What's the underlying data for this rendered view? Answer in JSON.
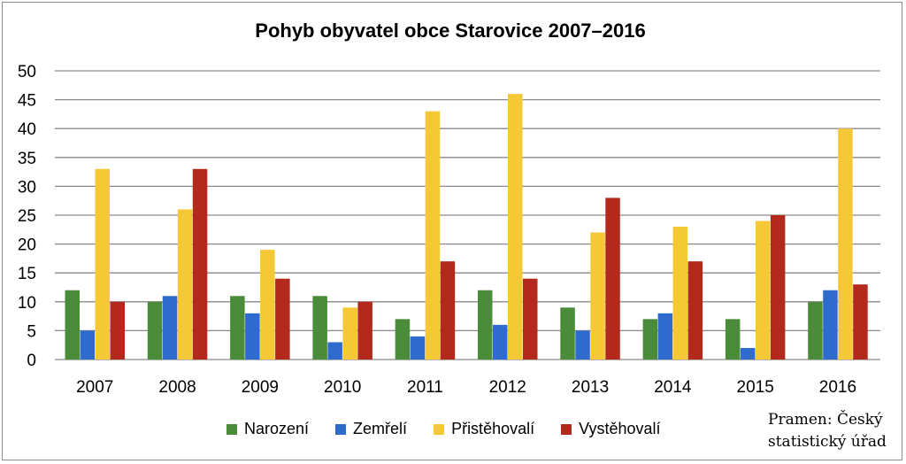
{
  "chart_data": {
    "type": "bar",
    "title": "Pohyb obyvatel obce Starovice 2007–2016",
    "categories": [
      "2007",
      "2008",
      "2009",
      "2010",
      "2011",
      "2012",
      "2013",
      "2014",
      "2015",
      "2016"
    ],
    "series": [
      {
        "name": "Narození",
        "color": "#4a8c3a",
        "values": [
          12,
          10,
          11,
          11,
          7,
          12,
          9,
          7,
          7,
          10
        ]
      },
      {
        "name": "Zemřelí",
        "color": "#2f6bcc",
        "values": [
          5,
          11,
          8,
          3,
          4,
          6,
          5,
          8,
          2,
          12
        ]
      },
      {
        "name": "Přistěhovalí",
        "color": "#f5c935",
        "values": [
          33,
          26,
          19,
          9,
          43,
          46,
          22,
          23,
          24,
          40
        ]
      },
      {
        "name": "Vystěhovalí",
        "color": "#b32a1c",
        "values": [
          10,
          33,
          14,
          10,
          17,
          14,
          28,
          17,
          25,
          13
        ]
      }
    ],
    "ylim": [
      0,
      50
    ],
    "yticks": [
      0,
      5,
      10,
      15,
      20,
      25,
      30,
      35,
      40,
      45,
      50
    ],
    "grid": true,
    "legend": "bottom"
  },
  "source": {
    "line1": "Pramen: Český",
    "line2": "statistický úřad"
  }
}
